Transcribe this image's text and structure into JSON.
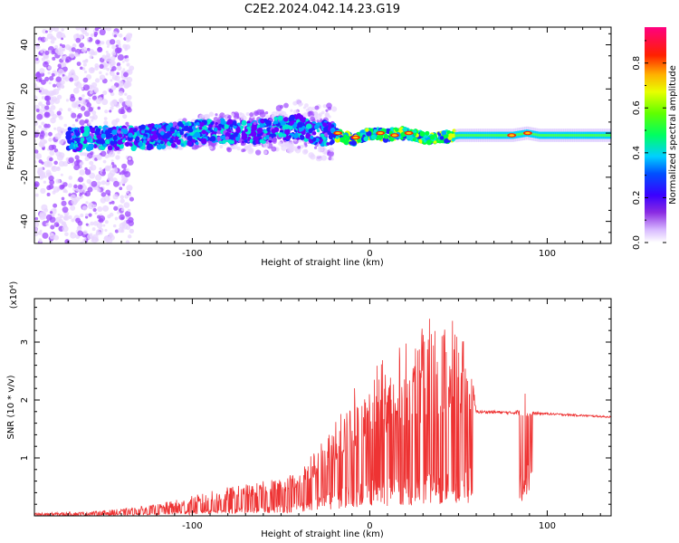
{
  "figure": {
    "title": "C2E2.2024.042.14.23.G19"
  },
  "chart_data": [
    {
      "type": "heatmap",
      "title": "C2E2.2024.042.14.23.G19",
      "xlabel": "Height of straight line (km)",
      "ylabel": "Frequency (Hz)",
      "xlim": [
        -189,
        136
      ],
      "ylim": [
        -50,
        48
      ],
      "x_ticks": [
        -100,
        0,
        100
      ],
      "y_ticks": [
        -40,
        -20,
        0,
        20,
        40
      ],
      "grid": false,
      "colorbar": {
        "label": "Normalized spectral amplitude",
        "range": [
          0.0,
          0.96
        ],
        "ticks": [
          0.0,
          0.2,
          0.4,
          0.6,
          0.8
        ],
        "colormap": "rainbow (violet → blue → cyan → green → yellow → orange → red → magenta)"
      },
      "center_frequency_track": {
        "x": [
          -170,
          -150,
          -130,
          -110,
          -90,
          -70,
          -50,
          -40,
          -30,
          -22,
          -10,
          0,
          10,
          20,
          30,
          40,
          50,
          60,
          70,
          80,
          88,
          95,
          110,
          136
        ],
        "y": [
          -3,
          -2,
          -2,
          -1,
          1,
          0,
          2,
          3,
          0,
          0,
          -3,
          0,
          -1,
          0,
          -2,
          -2,
          -1,
          -1,
          -1,
          -1,
          0,
          -1,
          -1,
          -1
        ]
      },
      "features": [
        {
          "x_range": [
            -189,
            -135
          ],
          "description_level": "sparse scatter",
          "amplitude": 0.1
        },
        {
          "x_range": [
            -135,
            -20
          ],
          "description_level": "broad mixed",
          "amplitude": 0.3
        },
        {
          "x_range": [
            -20,
            48
          ],
          "description_level": "narrow band with peaks",
          "amplitude": 0.6
        },
        {
          "x_range": [
            48,
            136
          ],
          "description_level": "steady band",
          "amplitude": 0.4
        }
      ]
    },
    {
      "type": "line",
      "xlabel": "Height of straight line (km)",
      "ylabel": "SNR (10 * v/v)",
      "y_scale_note": "(x10⁴)",
      "xlim": [
        -189,
        136
      ],
      "ylim": [
        0,
        3.75
      ],
      "x_ticks": [
        -100,
        0,
        100
      ],
      "y_ticks": [
        1,
        2,
        3
      ],
      "grid": false,
      "color": "#ee3333",
      "series": [
        {
          "envelope_x": [
            -189,
            -160,
            -140,
            -120,
            -100,
            -80,
            -60,
            -40,
            -30,
            -20,
            -10,
            0,
            10,
            20,
            30,
            40,
            50,
            56,
            60,
            70,
            80,
            85,
            88,
            90,
            100,
            120,
            136
          ],
          "envelope_base": [
            0.03,
            0.04,
            0.06,
            0.1,
            0.15,
            0.22,
            0.28,
            0.4,
            0.55,
            0.75,
            0.95,
            1.1,
            1.15,
            1.2,
            1.25,
            1.3,
            1.25,
            1.5,
            1.75,
            1.74,
            1.74,
            1.7,
            1.5,
            1.72,
            1.73,
            1.7,
            1.68
          ],
          "envelope_peak": [
            0.05,
            0.07,
            0.12,
            0.2,
            0.35,
            0.5,
            0.6,
            0.8,
            1.2,
            1.6,
            2.2,
            2.5,
            2.8,
            3.0,
            3.3,
            3.7,
            3.2,
            2.9,
            1.82,
            1.82,
            1.8,
            1.85,
            2.3,
            1.8,
            1.78,
            1.75,
            1.72
          ]
        }
      ]
    }
  ]
}
